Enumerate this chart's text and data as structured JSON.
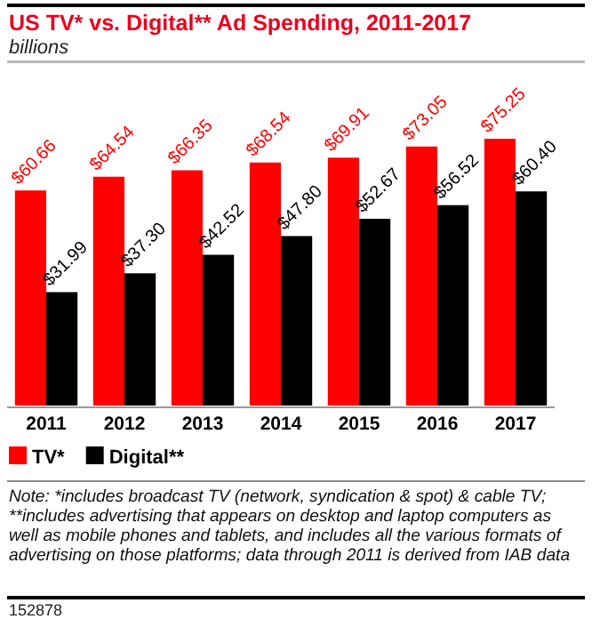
{
  "chart_data": {
    "type": "bar",
    "title": "US TV* vs. Digital** Ad Spending, 2011-2017",
    "subtitle": "billions",
    "categories": [
      "2011",
      "2012",
      "2013",
      "2014",
      "2015",
      "2016",
      "2017"
    ],
    "series": [
      {
        "name": "TV*",
        "color": "#ff0000",
        "values": [
          60.66,
          64.54,
          66.35,
          68.54,
          69.91,
          73.05,
          75.25
        ],
        "value_labels": [
          "$60.66",
          "$64.54",
          "$66.35",
          "$68.54",
          "$69.91",
          "$73.05",
          "$75.25"
        ]
      },
      {
        "name": "Digital**",
        "color": "#000000",
        "values": [
          31.99,
          37.3,
          42.52,
          47.8,
          52.67,
          56.52,
          60.4
        ],
        "value_labels": [
          "$31.99",
          "$37.30",
          "$42.52",
          "$47.80",
          "$52.67",
          "$56.52",
          "$60.40"
        ]
      }
    ],
    "legend": "bottom left",
    "annotations": [
      "Note: *includes broadcast TV (network, syndication & spot) & cable TV; **includes advertising that appears on desktop and laptop computers as well as mobile phones and tablets, and includes all the various formats of advertising on those platforms; data through 2011 is derived from IAB data",
      "152878"
    ]
  }
}
